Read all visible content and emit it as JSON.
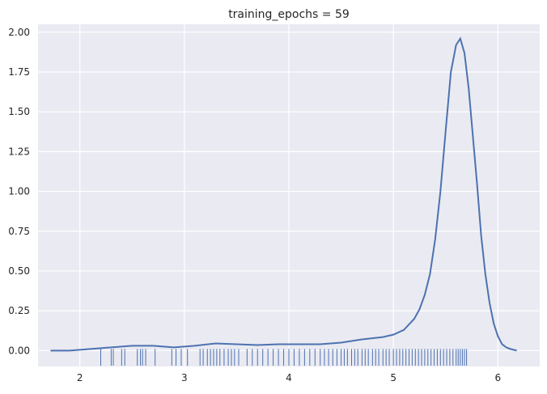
{
  "chart_data": {
    "type": "line",
    "title": "training_epochs = 59",
    "xlabel": "",
    "ylabel": "",
    "xlim": [
      1.6,
      6.4
    ],
    "ylim": [
      -0.1,
      2.05
    ],
    "grid": true,
    "x_ticks": [
      2,
      3,
      4,
      5,
      6
    ],
    "x_tick_labels": [
      "2",
      "3",
      "4",
      "5",
      "6"
    ],
    "y_ticks": [
      0.0,
      0.25,
      0.5,
      0.75,
      1.0,
      1.25,
      1.5,
      1.75,
      2.0
    ],
    "y_tick_labels": [
      "0.00",
      "0.25",
      "0.50",
      "0.75",
      "1.00",
      "1.25",
      "1.50",
      "1.75",
      "2.00"
    ],
    "colors": {
      "series": "#4c72b0",
      "background": "#eaeaf2",
      "grid": "#ffffff"
    },
    "series": [
      {
        "x": [
          1.72,
          1.9,
          2.1,
          2.3,
          2.5,
          2.7,
          2.9,
          3.1,
          3.3,
          3.5,
          3.7,
          3.9,
          4.1,
          4.3,
          4.5,
          4.7,
          4.9,
          5.0,
          5.1,
          5.2,
          5.25,
          5.3,
          5.35,
          5.4,
          5.45,
          5.5,
          5.55,
          5.6,
          5.64,
          5.68,
          5.72,
          5.76,
          5.8,
          5.84,
          5.88,
          5.92,
          5.96,
          6.0,
          6.04,
          6.08,
          6.12,
          6.18
        ],
        "y": [
          0.0,
          0.0,
          0.01,
          0.02,
          0.03,
          0.03,
          0.02,
          0.03,
          0.045,
          0.04,
          0.035,
          0.04,
          0.04,
          0.04,
          0.05,
          0.07,
          0.085,
          0.1,
          0.13,
          0.2,
          0.26,
          0.35,
          0.48,
          0.7,
          1.0,
          1.38,
          1.75,
          1.92,
          1.96,
          1.87,
          1.65,
          1.35,
          1.05,
          0.72,
          0.48,
          0.3,
          0.17,
          0.09,
          0.04,
          0.02,
          0.01,
          0.0
        ]
      }
    ],
    "rug_x": [
      2.2,
      2.3,
      2.32,
      2.4,
      2.43,
      2.55,
      2.58,
      2.6,
      2.63,
      2.72,
      2.88,
      2.92,
      2.97,
      3.03,
      3.15,
      3.18,
      3.22,
      3.25,
      3.28,
      3.31,
      3.34,
      3.38,
      3.42,
      3.45,
      3.48,
      3.52,
      3.6,
      3.65,
      3.7,
      3.75,
      3.8,
      3.85,
      3.9,
      3.95,
      4.0,
      4.05,
      4.1,
      4.15,
      4.2,
      4.25,
      4.3,
      4.34,
      4.38,
      4.42,
      4.46,
      4.5,
      4.53,
      4.56,
      4.6,
      4.63,
      4.66,
      4.7,
      4.73,
      4.76,
      4.8,
      4.83,
      4.86,
      4.9,
      4.93,
      4.96,
      5.0,
      5.03,
      5.06,
      5.09,
      5.12,
      5.15,
      5.18,
      5.21,
      5.24,
      5.27,
      5.3,
      5.33,
      5.36,
      5.39,
      5.42,
      5.45,
      5.48,
      5.51,
      5.54,
      5.57,
      5.6,
      5.62,
      5.64,
      5.66,
      5.68,
      5.7
    ]
  }
}
